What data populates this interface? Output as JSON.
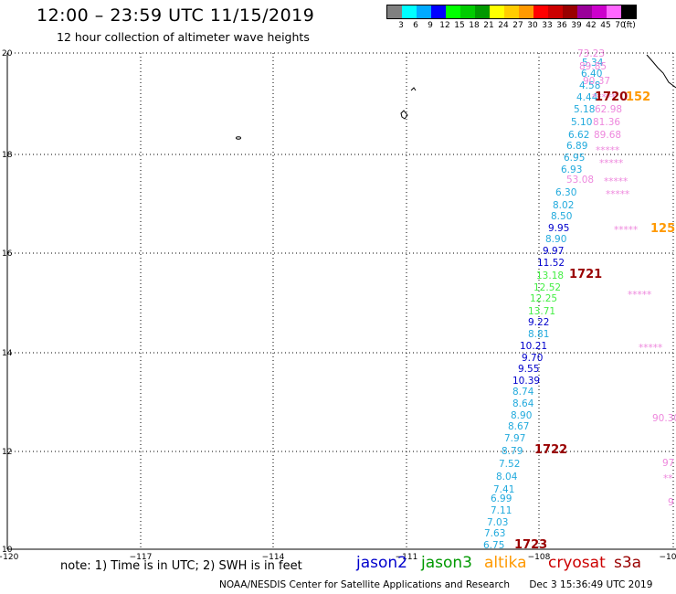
{
  "header": {
    "title": "12:00  –  23:59  UTC  11/15/2019",
    "subtitle": "12 hour collection of altimeter wave heights"
  },
  "colorbar": {
    "swatches": [
      "#808080",
      "#00ffff",
      "#00aaff",
      "#0000ff",
      "#00ff00",
      "#00cc00",
      "#009900",
      "#ffff00",
      "#ffcc00",
      "#ff9900",
      "#ff0000",
      "#cc0000",
      "#990000",
      "#990099",
      "#cc00cc",
      "#ff66ff",
      "#000000"
    ],
    "labels": [
      "3",
      "6",
      "9",
      "12",
      "15",
      "18",
      "21",
      "24",
      "27",
      "30",
      "33",
      "36",
      "39",
      "42",
      "45",
      "70",
      "(ft)"
    ]
  },
  "axes": {
    "lat_labels": [
      "20",
      "18",
      "16",
      "14",
      "12",
      "10"
    ],
    "lon_labels": [
      "−120",
      "−117",
      "−114",
      "−111",
      "−108",
      "−10"
    ]
  },
  "chart_data": {
    "type": "map",
    "grid": "dotted",
    "lat_range": [
      10,
      20
    ],
    "lon_range": [
      -120,
      -105
    ],
    "observations": [
      {
        "text": "73.23",
        "color": "#ee88dd"
      },
      {
        "text": "5.34",
        "color": "#22aadd"
      },
      {
        "text": "89.85",
        "color": "#ee88dd"
      },
      {
        "text": "6.40",
        "color": "#22aadd"
      },
      {
        "text": "4.58",
        "color": "#22aadd"
      },
      {
        "text": "90.37",
        "color": "#ee88dd"
      },
      {
        "text": "4.44",
        "color": "#22aadd"
      },
      {
        "text": "*****",
        "color": "#ee88dd"
      },
      {
        "text": "1720",
        "color": "#990000"
      },
      {
        "text": "152",
        "color": "#ff9900"
      },
      {
        "text": "5.18",
        "color": "#22aadd"
      },
      {
        "text": "62.98",
        "color": "#ee88dd"
      },
      {
        "text": "5.10",
        "color": "#22aadd"
      },
      {
        "text": "81.36",
        "color": "#ee88dd"
      },
      {
        "text": "6.62",
        "color": "#22aadd"
      },
      {
        "text": "89.68",
        "color": "#ee88dd"
      },
      {
        "text": "6.89",
        "color": "#22aadd"
      },
      {
        "text": "*****",
        "color": "#ee88dd"
      },
      {
        "text": "6.95",
        "color": "#22aadd"
      },
      {
        "text": "*****",
        "color": "#ee88dd"
      },
      {
        "text": "6.93",
        "color": "#22aadd"
      },
      {
        "text": "53.08",
        "color": "#ee88dd"
      },
      {
        "text": "*****",
        "color": "#ee88dd"
      },
      {
        "text": "6.30",
        "color": "#22aadd"
      },
      {
        "text": "*****",
        "color": "#ee88dd"
      },
      {
        "text": "8.02",
        "color": "#22aadd"
      },
      {
        "text": "8.50",
        "color": "#22aadd"
      },
      {
        "text": "9.95",
        "color": "#0000cc"
      },
      {
        "text": "*****",
        "color": "#ee88dd"
      },
      {
        "text": "125",
        "color": "#ff9900"
      },
      {
        "text": "8.90",
        "color": "#22aadd"
      },
      {
        "text": "9.97",
        "color": "#0000cc"
      },
      {
        "text": "11.52",
        "color": "#0000cc"
      },
      {
        "text": "13.18",
        "color": "#44ee44"
      },
      {
        "text": "1721",
        "color": "#990000"
      },
      {
        "text": "12.52",
        "color": "#44ee44"
      },
      {
        "text": "*****",
        "color": "#ee88dd"
      },
      {
        "text": "12.25",
        "color": "#44ee44"
      },
      {
        "text": "13.71",
        "color": "#44ee44"
      },
      {
        "text": "9.22",
        "color": "#0000cc"
      },
      {
        "text": "8.81",
        "color": "#22aadd"
      },
      {
        "text": "10.21",
        "color": "#0000cc"
      },
      {
        "text": "*****",
        "color": "#ee88dd"
      },
      {
        "text": "9.70",
        "color": "#0000cc"
      },
      {
        "text": "9.55",
        "color": "#0000cc"
      },
      {
        "text": "10.39",
        "color": "#0000cc"
      },
      {
        "text": "8.74",
        "color": "#22aadd"
      },
      {
        "text": "8.64",
        "color": "#22aadd"
      },
      {
        "text": "8.90",
        "color": "#22aadd"
      },
      {
        "text": "90.30",
        "color": "#ee88dd"
      },
      {
        "text": "8.67",
        "color": "#22aadd"
      },
      {
        "text": "7.97",
        "color": "#22aadd"
      },
      {
        "text": "8.79",
        "color": "#22aadd"
      },
      {
        "text": "1722",
        "color": "#990000"
      },
      {
        "text": "7.52",
        "color": "#22aadd"
      },
      {
        "text": "97",
        "color": "#ee88dd"
      },
      {
        "text": "8.04",
        "color": "#22aadd"
      },
      {
        "text": "**",
        "color": "#ee88dd"
      },
      {
        "text": "7.41",
        "color": "#22aadd"
      },
      {
        "text": "6.99",
        "color": "#22aadd"
      },
      {
        "text": "9",
        "color": "#ee88dd"
      },
      {
        "text": "7.11",
        "color": "#22aadd"
      },
      {
        "text": "7.03",
        "color": "#22aadd"
      },
      {
        "text": "7.63",
        "color": "#22aadd"
      },
      {
        "text": "6.75",
        "color": "#22aadd"
      },
      {
        "text": "1723",
        "color": "#990000"
      }
    ]
  },
  "note": "note:  1) Time is in UTC;  2) SWH is in feet",
  "satellites": [
    {
      "name": "jason2",
      "color": "#0000cc"
    },
    {
      "name": "jason3",
      "color": "#009900"
    },
    {
      "name": "altika",
      "color": "#ff9900"
    },
    {
      "name": "cryosat",
      "color": "#cc0000"
    },
    {
      "name": "s3a",
      "color": "#990000"
    }
  ],
  "footer": {
    "credit": "NOAA/NESDIS Center for Satellite Applications and Research",
    "timestamp": "Dec  3 15:36:49 UTC 2019"
  }
}
